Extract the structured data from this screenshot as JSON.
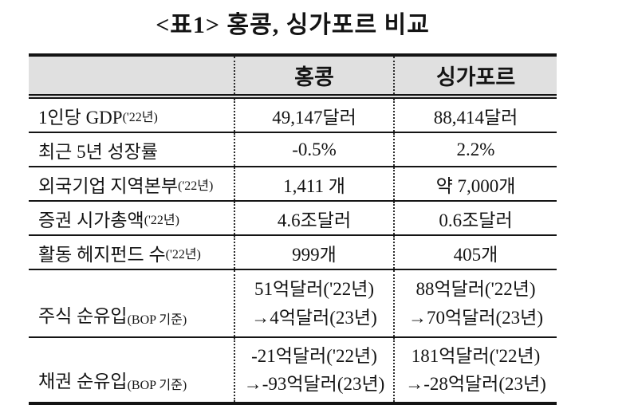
{
  "page": {
    "title": "<표1> 홍콩, 싱가포르 비교"
  },
  "table": {
    "columns": [
      "",
      "홍콩",
      "싱가포르"
    ],
    "colors": {
      "header_bg": "#e0e0e0",
      "border": "#141414",
      "text": "#141414"
    },
    "rows": [
      {
        "label": "1인당 GDP",
        "note": "('22년)",
        "hk1": "49,147달러",
        "sg1": "88,414달러"
      },
      {
        "label": "최근 5년 성장률",
        "note": "",
        "hk1": "-0.5%",
        "sg1": "2.2%"
      },
      {
        "label": "외국기업 지역본부",
        "note": "('22년)",
        "hk1": "1,411 개",
        "sg1": "약 7,000개"
      },
      {
        "label": "증권 시가총액",
        "note": "('22년)",
        "hk1": "4.6조달러",
        "sg1": "0.6조달러"
      },
      {
        "label": "활동 헤지펀드 수",
        "note": "('22년)",
        "hk1": "999개",
        "sg1": "405개"
      },
      {
        "label": "주식 순유입",
        "note": "(BOP 기준)",
        "hk1": "51억달러('22년)",
        "hk2": "→4억달러(23년)",
        "sg1": "88억달러('22년)",
        "sg2": "→70억달러(23년)"
      },
      {
        "label": "채권 순유입",
        "note": "(BOP 기준)",
        "hk1": "-21억달러('22년)",
        "hk2": "→-93억달러(23년)",
        "sg1": "181억달러('22년)",
        "sg2": "→-28억달러(23년)"
      }
    ]
  }
}
